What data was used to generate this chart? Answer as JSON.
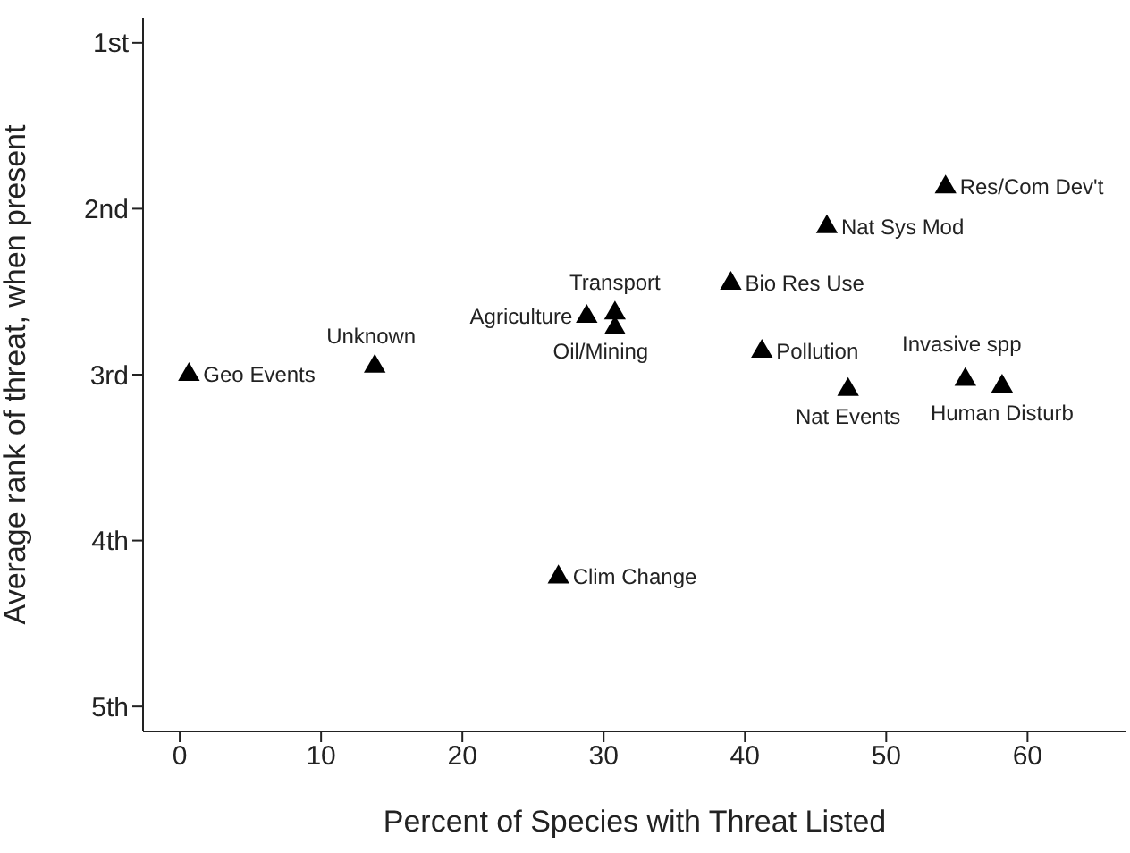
{
  "chart_data": {
    "type": "scatter",
    "xlabel": "Percent of Species with Threat Listed",
    "ylabel": "Average rank of threat, when present",
    "x": [
      0.65,
      13.8,
      28.8,
      30.8,
      30.8,
      39.0,
      41.2,
      47.3,
      55.6,
      58.2,
      45.8,
      54.2,
      26.8
    ],
    "series": [
      {
        "color": "#000000",
        "values": [
          3.0,
          2.95,
          2.65,
          2.63,
          2.72,
          2.45,
          2.86,
          3.09,
          3.03,
          3.07,
          2.11,
          1.87,
          4.22
        ]
      }
    ],
    "marker": "triangle",
    "xlim": [
      -2.6,
      67
    ],
    "xticks": [
      0,
      10,
      20,
      30,
      40,
      50,
      60
    ],
    "ylim": [
      5.15,
      0.85
    ],
    "yticks": [
      {
        "value": 1,
        "label": "1st"
      },
      {
        "value": 2,
        "label": "2nd"
      },
      {
        "value": 3,
        "label": "3rd"
      },
      {
        "value": 4,
        "label": "4th"
      },
      {
        "value": 5,
        "label": "5th"
      }
    ],
    "grid": false,
    "legend": false,
    "annotations": [
      {
        "text": "Geo Events",
        "x": 0.65,
        "y": 3.0
      },
      {
        "text": "Unknown",
        "x": 13.8,
        "y": 2.95
      },
      {
        "text": "Agriculture",
        "x": 28.8,
        "y": 2.65
      },
      {
        "text": "Transport",
        "x": 30.8,
        "y": 2.63
      },
      {
        "text": "Oil/Mining",
        "x": 30.8,
        "y": 2.72
      },
      {
        "text": "Bio Res Use",
        "x": 39.0,
        "y": 2.45
      },
      {
        "text": "Pollution",
        "x": 41.2,
        "y": 2.86
      },
      {
        "text": "Nat Events",
        "x": 47.3,
        "y": 3.09
      },
      {
        "text": "Invasive spp",
        "x": 55.6,
        "y": 3.03
      },
      {
        "text": "Human Disturb",
        "x": 58.2,
        "y": 3.07
      },
      {
        "text": "Nat Sys Mod",
        "x": 45.8,
        "y": 2.11
      },
      {
        "text": "Res/Com Dev't",
        "x": 54.2,
        "y": 1.87
      },
      {
        "text": "Clim Change",
        "x": 26.8,
        "y": 4.22
      }
    ]
  }
}
